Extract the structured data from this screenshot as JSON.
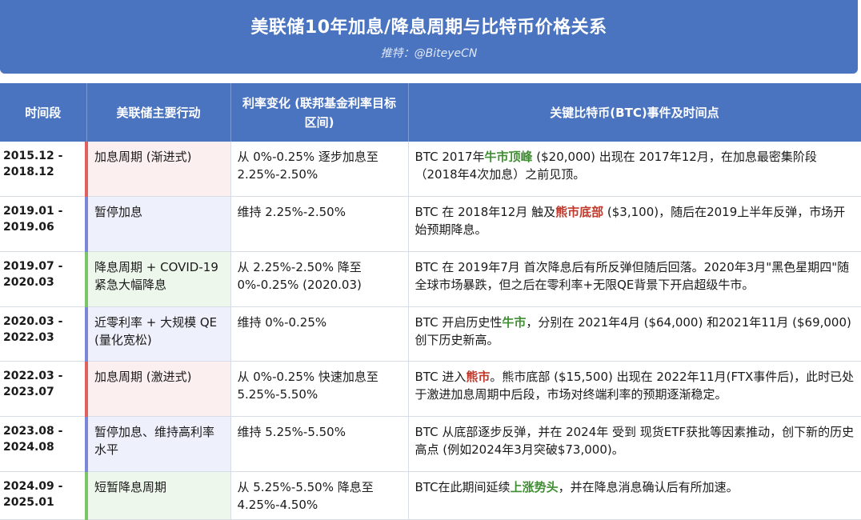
{
  "header": {
    "title": "美联储10年加息/降息周期与比特币价格关系",
    "subtitle": "推特：@BiteyeCN"
  },
  "table": {
    "columns": [
      "时间段",
      "美联储主要行动",
      "利率变化 (联邦基金利率目标区间)",
      "关键比特币(BTC)事件及时间点"
    ],
    "rows": [
      {
        "period_start": "2015.12 -",
        "period_end": "2018.12",
        "action": "加息周期 (渐进式)",
        "type": "hike",
        "rate": "从 0%-0.25% 逐步加息至 2.25%-2.50%",
        "btc_pre": "BTC 2017年",
        "btc_kw": "牛市顶峰",
        "btc_kw_color": "green",
        "btc_post": " ($20,000) 出现在 2017年12月，在加息最密集阶段（2018年4次加息）之前见顶。"
      },
      {
        "period_start": "2019.01 -",
        "period_end": "2019.06",
        "action": "暂停加息",
        "type": "pause",
        "rate": "维持 2.25%-2.50%",
        "btc_pre": "BTC 在 2018年12月 触及",
        "btc_kw": "熊市底部",
        "btc_kw_color": "red",
        "btc_post": " ($3,100)，随后在2019上半年反弹，市场开始预期降息。"
      },
      {
        "period_start": "2019.07 -",
        "period_end": "2020.03",
        "action": "降息周期 + COVID-19 紧急大幅降息",
        "type": "cut",
        "rate": "从 2.25%-2.50% 降至 0%-0.25% (2020.03)",
        "btc_pre": "BTC 在 2019年7月 首次降息后有所反弹但随后回落。2020年3月\"黑色星期四\"随全球市场暴跌，但之后在零利率+无限QE背景下开启超级牛市。",
        "btc_kw": "",
        "btc_kw_color": "",
        "btc_post": ""
      },
      {
        "period_start": "2020.03 -",
        "period_end": "2022.03",
        "action": "近零利率 + 大规模 QE (量化宽松)",
        "type": "pause",
        "rate": "维持 0%-0.25%",
        "btc_pre": "BTC 开启历史性",
        "btc_kw": "牛市",
        "btc_kw_color": "green",
        "btc_post": "，分别在 2021年4月 ($64,000) 和2021年11月 ($69,000) 创下历史新高。"
      },
      {
        "period_start": "2022.03 -",
        "period_end": "2023.07",
        "action": "加息周期 (激进式)",
        "type": "hike",
        "rate": "从 0%-0.25% 快速加息至 5.25%-5.50%",
        "btc_pre": "BTC 进入",
        "btc_kw": "熊市",
        "btc_kw_color": "red",
        "btc_post": "。熊市底部 ($15,500) 出现在 2022年11月(FTX事件后)，此时已处于激进加息周期中后段，市场对终端利率的预期逐渐稳定。"
      },
      {
        "period_start": "2023.08 -",
        "period_end": "2024.08",
        "action": "暂停加息、维持高利率水平",
        "type": "pause",
        "rate": "维持 5.25%-5.50%",
        "btc_pre": "BTC 从底部逐步反弹，并在 2024年 受到 现货ETF获批等因素推动，创下新的历史高点 (例如2024年3月突破$73,000)。",
        "btc_kw": "",
        "btc_kw_color": "",
        "btc_post": ""
      },
      {
        "period_start": "2024.09 -",
        "period_end": "2025.01",
        "action": "短暂降息周期",
        "type": "cut",
        "rate": "从 5.25%-5.50% 降息至 4.25%-4.50%",
        "btc_pre": "BTC在此期间延续",
        "btc_kw": "上涨势头",
        "btc_kw_color": "green",
        "btc_post": "，并在降息消息确认后有所加速。"
      }
    ]
  },
  "colors": {
    "header_bg": "#4a73c0",
    "hike_bar": "#e06060",
    "pause_bar": "#7b86d6",
    "cut_bar": "#7cc46a",
    "green_kw": "#3f8f32",
    "red_kw": "#c0392b"
  }
}
